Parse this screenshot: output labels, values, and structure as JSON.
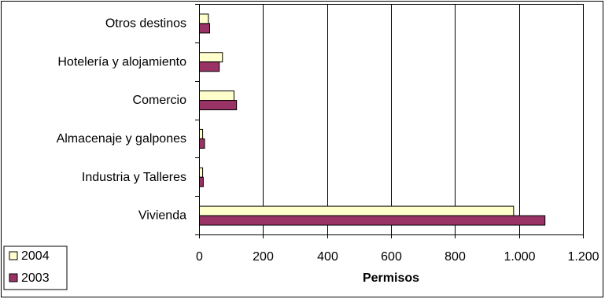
{
  "chart_data": {
    "type": "bar",
    "orientation": "horizontal",
    "categories": [
      "Otros destinos",
      "Hotelería y alojamiento",
      "Comercio",
      "Almacenaje y galpones",
      "Industria y Talleres",
      "Vivienda"
    ],
    "series": [
      {
        "name": "2004",
        "color": "#ffffcc",
        "values": [
          28,
          72,
          108,
          10,
          10,
          982
        ]
      },
      {
        "name": "2003",
        "color": "#993366",
        "values": [
          32,
          62,
          116,
          16,
          12,
          1080
        ]
      }
    ],
    "xlabel": "Permisos",
    "ylabel": "",
    "xlim": [
      0,
      1200
    ],
    "xticks": [
      0,
      200,
      400,
      600,
      800,
      1000,
      1200
    ],
    "xtick_labels": [
      "0",
      "200",
      "400",
      "600",
      "800",
      "1.000",
      "1.200"
    ],
    "grid": "vertical",
    "legend_position": "bottom-left",
    "legend_entries": [
      "2004",
      "2003"
    ]
  }
}
